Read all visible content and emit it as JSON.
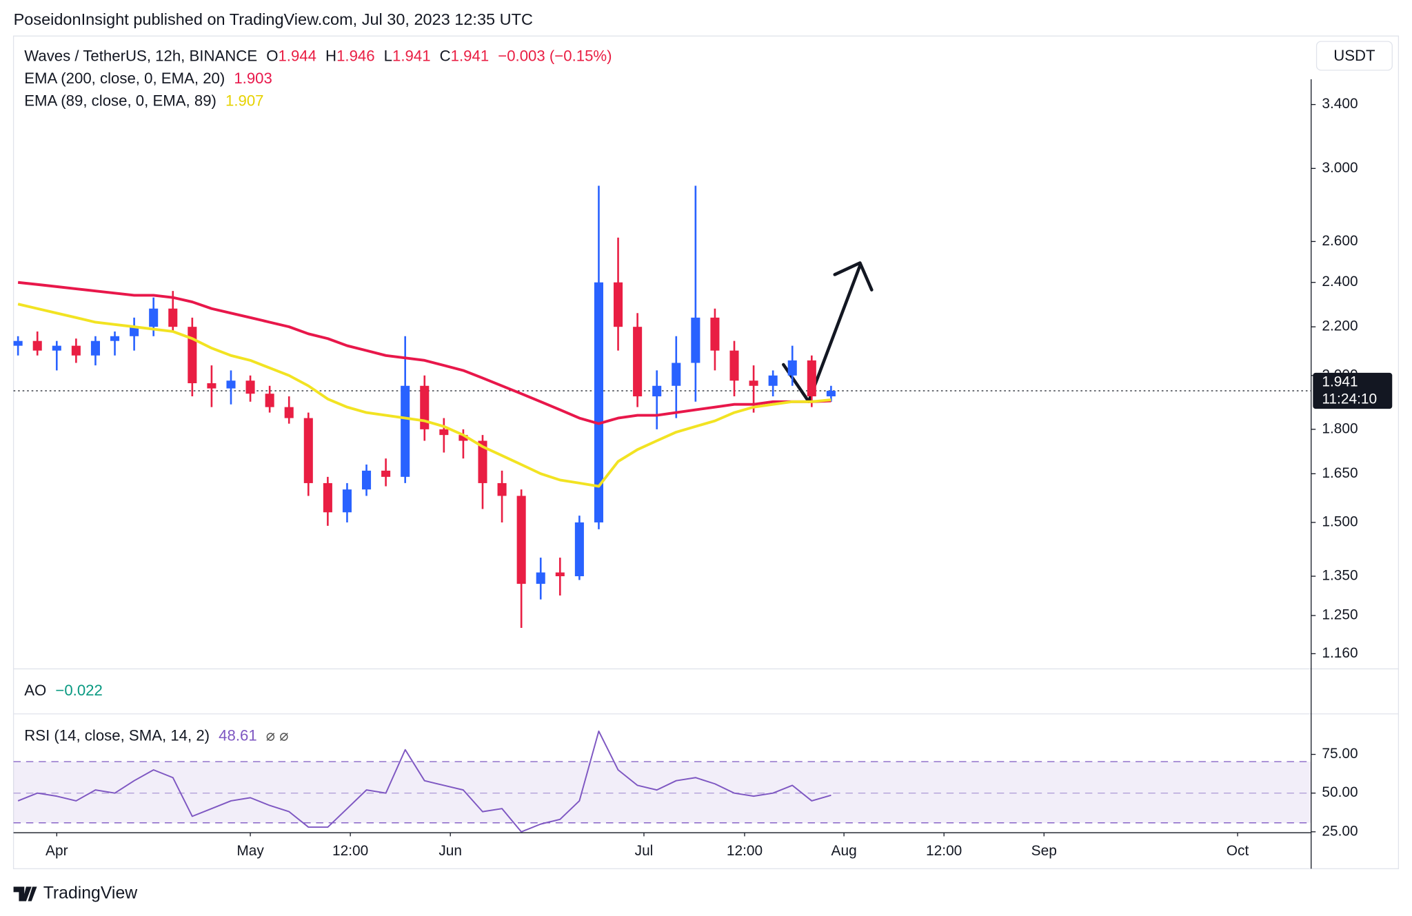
{
  "header": "PoseidonInsight published on TradingView.com, Jul 30, 2023 12:35 UTC",
  "brand": "TradingView",
  "currency": "USDT",
  "countdown": "11:24:10",
  "ao_legend": {
    "title": "AO",
    "value": "−0.022"
  },
  "chart_data": [
    {
      "type": "candlestick",
      "title": "Waves / TetherUS, 12h, BINANCE",
      "readout_labels": [
        "O",
        "H",
        "L",
        "C"
      ],
      "readout": {
        "open": 1.944,
        "high": 1.946,
        "low": 1.941,
        "close": 1.941,
        "change": "−0.003 (−0.15%)"
      },
      "up_color": "#2962ff",
      "down_color": "#e91e43",
      "log_scale": true,
      "xlim": [
        -6.7,
        194.4
      ],
      "xticks": [
        {
          "value": 0,
          "label": "Apr"
        },
        {
          "value": 30,
          "label": "May"
        },
        {
          "value": 45.5,
          "label": "12:00"
        },
        {
          "value": 61,
          "label": "Jun"
        },
        {
          "value": 91,
          "label": "Jul"
        },
        {
          "value": 106.6,
          "label": "12:00"
        },
        {
          "value": 122,
          "label": "Aug"
        },
        {
          "value": 137.5,
          "label": "12:00"
        },
        {
          "value": 153,
          "label": "Sep"
        },
        {
          "value": 183,
          "label": "Oct"
        }
      ],
      "ylim": [
        1.126,
        3.888
      ],
      "yticks": [
        {
          "value": 3.4,
          "label": "3.400"
        },
        {
          "value": 3,
          "label": "3.000"
        },
        {
          "value": 2.6,
          "label": "2.600"
        },
        {
          "value": 2.4,
          "label": "2.400"
        },
        {
          "value": 2.2,
          "label": "2.200"
        },
        {
          "value": 2,
          "label": "2.000"
        },
        {
          "value": 1.8,
          "label": "1.800"
        },
        {
          "value": 1.65,
          "label": "1.650"
        },
        {
          "value": 1.5,
          "label": "1.500"
        },
        {
          "value": 1.35,
          "label": "1.350"
        },
        {
          "value": 1.25,
          "label": "1.250"
        },
        {
          "value": 1.16,
          "label": "1.160"
        }
      ],
      "x": [
        -6,
        -3,
        0,
        3,
        6,
        9,
        12,
        15,
        18,
        21,
        24,
        27,
        30,
        33,
        36,
        39,
        42,
        45,
        48,
        51,
        54,
        57,
        60,
        63,
        66,
        69,
        72,
        75,
        78,
        81,
        84,
        87,
        90,
        93,
        96,
        99,
        102,
        105,
        108,
        111,
        114,
        117,
        120
      ],
      "open": [
        2.12,
        2.14,
        2.1,
        2.12,
        2.08,
        2.14,
        2.16,
        2.2,
        2.28,
        2.2,
        1.97,
        1.95,
        1.98,
        1.93,
        1.88,
        1.84,
        1.62,
        1.53,
        1.6,
        1.66,
        1.64,
        1.96,
        1.8,
        1.78,
        1.76,
        1.62,
        1.58,
        1.33,
        1.36,
        1.35,
        1.5,
        2.4,
        2.2,
        1.92,
        1.96,
        2.05,
        2.24,
        2.1,
        1.98,
        1.96,
        2.0,
        2.06,
        1.92
      ],
      "high": [
        2.16,
        2.18,
        2.14,
        2.15,
        2.16,
        2.18,
        2.24,
        2.33,
        2.36,
        2.24,
        2.04,
        2.02,
        2.0,
        1.96,
        1.92,
        1.86,
        1.64,
        1.62,
        1.68,
        1.7,
        2.16,
        2.0,
        1.84,
        1.8,
        1.78,
        1.66,
        1.6,
        1.4,
        1.4,
        1.52,
        2.9,
        2.62,
        2.26,
        2.02,
        2.16,
        2.9,
        2.28,
        2.14,
        2.04,
        2.02,
        2.12,
        2.08,
        1.96
      ],
      "low": [
        2.08,
        2.08,
        2.02,
        2.05,
        2.04,
        2.08,
        2.1,
        2.16,
        2.18,
        1.92,
        1.88,
        1.89,
        1.9,
        1.86,
        1.82,
        1.58,
        1.49,
        1.5,
        1.58,
        1.61,
        1.62,
        1.76,
        1.72,
        1.7,
        1.54,
        1.5,
        1.22,
        1.29,
        1.3,
        1.34,
        1.48,
        2.1,
        1.88,
        1.8,
        1.84,
        1.9,
        2.02,
        1.92,
        1.86,
        1.92,
        1.96,
        1.88,
        1.9
      ],
      "close": [
        2.14,
        2.1,
        2.12,
        2.08,
        2.14,
        2.16,
        2.2,
        2.28,
        2.2,
        1.97,
        1.95,
        1.98,
        1.93,
        1.88,
        1.84,
        1.62,
        1.53,
        1.6,
        1.66,
        1.64,
        1.96,
        1.8,
        1.78,
        1.76,
        1.62,
        1.58,
        1.33,
        1.36,
        1.35,
        1.5,
        2.4,
        2.2,
        1.92,
        1.96,
        2.05,
        2.24,
        2.1,
        1.98,
        1.96,
        2.0,
        2.06,
        1.92,
        1.941
      ],
      "series": [
        {
          "name": "EMA (200, close, 0, EMA, 20)",
          "color": "#e8174a",
          "last_value": 1.903,
          "values": [
            2.4,
            2.39,
            2.38,
            2.37,
            2.36,
            2.35,
            2.34,
            2.34,
            2.33,
            2.31,
            2.28,
            2.26,
            2.24,
            2.22,
            2.2,
            2.17,
            2.15,
            2.12,
            2.1,
            2.08,
            2.07,
            2.06,
            2.04,
            2.02,
            1.99,
            1.96,
            1.93,
            1.9,
            1.87,
            1.84,
            1.82,
            1.84,
            1.85,
            1.85,
            1.86,
            1.87,
            1.88,
            1.89,
            1.89,
            1.9,
            1.9,
            1.9,
            1.903
          ]
        },
        {
          "name": "EMA (89, close, 0, EMA, 89)",
          "color": "#f2e322",
          "last_value": 1.907,
          "values": [
            2.3,
            2.28,
            2.26,
            2.24,
            2.22,
            2.21,
            2.2,
            2.19,
            2.18,
            2.15,
            2.11,
            2.08,
            2.06,
            2.03,
            2.0,
            1.96,
            1.91,
            1.88,
            1.86,
            1.85,
            1.84,
            1.83,
            1.81,
            1.78,
            1.74,
            1.71,
            1.68,
            1.65,
            1.63,
            1.62,
            1.61,
            1.69,
            1.73,
            1.76,
            1.79,
            1.81,
            1.83,
            1.86,
            1.88,
            1.89,
            1.9,
            1.9,
            1.907
          ]
        }
      ]
    },
    {
      "type": "line",
      "title": "RSI (14, close, SMA, 14, 2)",
      "last_value": 48.61,
      "status": "⌀ ⌀",
      "color": "#7e57c2",
      "ylim": [
        24.4,
        100
      ],
      "yticks": [
        {
          "value": 75,
          "label": "75.00"
        },
        {
          "value": 50,
          "label": "50.00"
        },
        {
          "value": 25,
          "label": "25.00"
        }
      ],
      "values": [
        45,
        50,
        48,
        45,
        52,
        50,
        58,
        65,
        60,
        35,
        40,
        45,
        47,
        42,
        38,
        28,
        28,
        40,
        52,
        50,
        78,
        58,
        55,
        52,
        38,
        40,
        25,
        30,
        33,
        45,
        90,
        65,
        55,
        52,
        58,
        60,
        56,
        50,
        48,
        50,
        55,
        45,
        48.61
      ]
    }
  ]
}
